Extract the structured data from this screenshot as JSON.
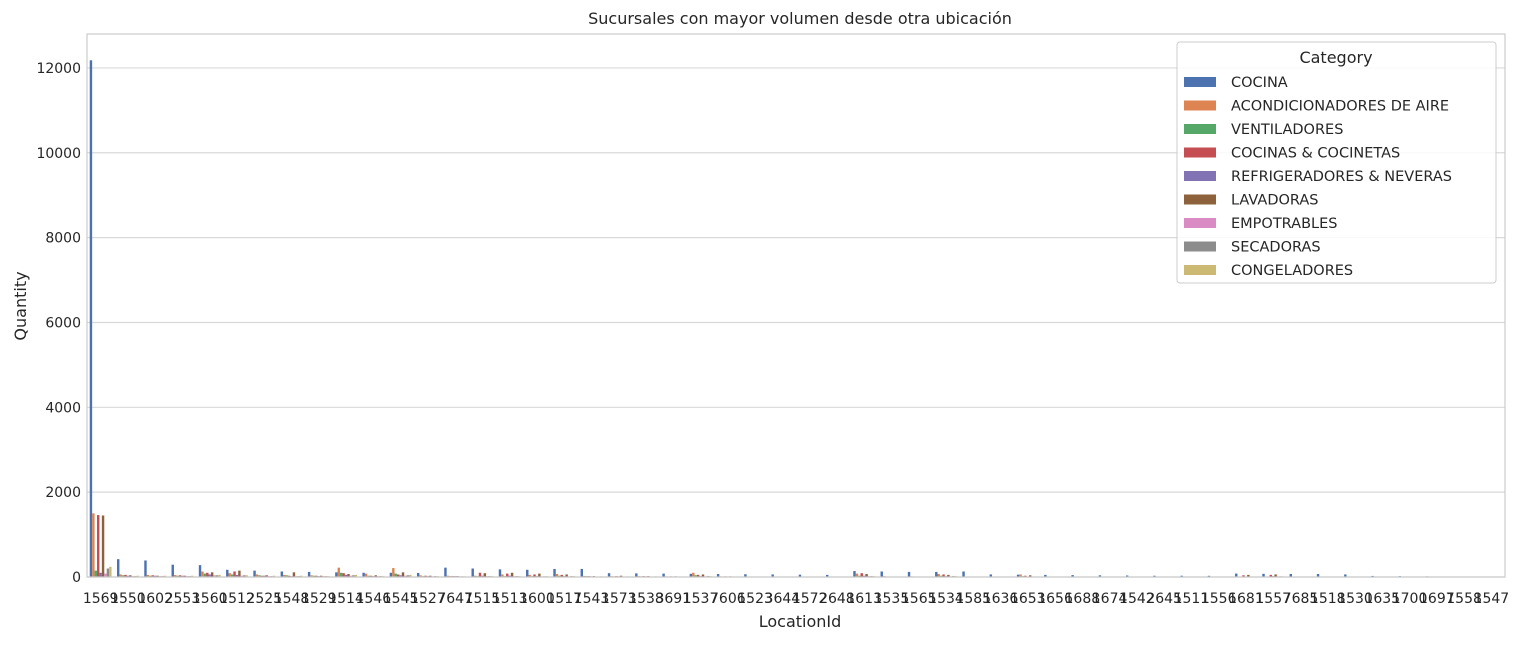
{
  "chart_data": {
    "type": "bar",
    "title": "Sucursales con mayor volumen desde otra ubicación",
    "xlabel": "LocationId",
    "ylabel": "Quantity",
    "ylim": [
      0,
      12800
    ],
    "yticks": [
      0,
      2000,
      4000,
      6000,
      8000,
      10000,
      12000
    ],
    "grid": true,
    "legend": {
      "title": "Category",
      "position": "top-right"
    },
    "categories": [
      "1569",
      "1550",
      "1602",
      "2553",
      "1560",
      "1512",
      "2525",
      "1548",
      "1529",
      "1514",
      "1546",
      "1545",
      "1527",
      "7647",
      "1515",
      "1513",
      "1600",
      "1517",
      "1543",
      "1573",
      "1538",
      "3691",
      "1537",
      "7606",
      "1523",
      "3644",
      "1572",
      "2648",
      "1613",
      "1535",
      "1565",
      "1534",
      "1585",
      "1636",
      "1653",
      "1656",
      "1688",
      "1674",
      "1542",
      "2645",
      "1511",
      "1556",
      "1681",
      "1557",
      "7685",
      "1518",
      "1530",
      "1635",
      "1700",
      "1697",
      "1558",
      "1547"
    ],
    "series": [
      {
        "name": "COCINA",
        "color": "#4c72b0",
        "values": [
          12180,
          420,
          390,
          290,
          280,
          170,
          150,
          130,
          120,
          110,
          100,
          100,
          95,
          220,
          200,
          180,
          170,
          190,
          190,
          90,
          85,
          80,
          75,
          70,
          65,
          60,
          55,
          50,
          140,
          130,
          120,
          120,
          130,
          60,
          55,
          50,
          45,
          40,
          35,
          30,
          30,
          28,
          80,
          75,
          70,
          70,
          60,
          25,
          20,
          15,
          10,
          5
        ]
      },
      {
        "name": "ACONDICIONADORES DE AIRE",
        "color": "#dd8452",
        "values": [
          1500,
          60,
          50,
          45,
          130,
          90,
          60,
          50,
          40,
          220,
          80,
          210,
          40,
          30,
          30,
          60,
          50,
          70,
          25,
          20,
          20,
          15,
          100,
          15,
          12,
          12,
          10,
          10,
          80,
          20,
          15,
          70,
          10,
          10,
          60,
          10,
          8,
          8,
          8,
          6,
          6,
          6,
          5,
          5,
          5,
          5,
          5,
          4,
          4,
          3,
          3,
          2
        ]
      },
      {
        "name": "VENTILADORES",
        "color": "#55a868",
        "values": [
          150,
          40,
          30,
          30,
          80,
          60,
          40,
          40,
          30,
          100,
          30,
          80,
          20,
          20,
          20,
          20,
          20,
          30,
          20,
          15,
          15,
          10,
          40,
          10,
          10,
          10,
          8,
          8,
          30,
          10,
          10,
          30,
          8,
          8,
          20,
          6,
          6,
          6,
          5,
          5,
          5,
          4,
          4,
          4,
          4,
          4,
          3,
          3,
          3,
          2,
          2,
          2
        ]
      },
      {
        "name": "COCINAS & COCINETAS",
        "color": "#c44e52",
        "values": [
          1460,
          50,
          40,
          40,
          100,
          130,
          30,
          30,
          30,
          90,
          30,
          60,
          30,
          20,
          100,
          80,
          60,
          50,
          20,
          20,
          20,
          15,
          50,
          15,
          10,
          10,
          10,
          8,
          90,
          10,
          10,
          60,
          10,
          8,
          30,
          8,
          6,
          6,
          6,
          5,
          5,
          5,
          40,
          50,
          5,
          4,
          4,
          3,
          3,
          3,
          2,
          2
        ]
      },
      {
        "name": "REFRIGERADORES & NEVERAS",
        "color": "#8172b3",
        "values": [
          100,
          30,
          30,
          30,
          60,
          50,
          30,
          20,
          20,
          50,
          20,
          40,
          20,
          20,
          30,
          30,
          20,
          20,
          15,
          15,
          15,
          10,
          20,
          10,
          10,
          8,
          8,
          8,
          30,
          8,
          8,
          20,
          6,
          6,
          10,
          5,
          5,
          5,
          5,
          4,
          4,
          4,
          10,
          20,
          4,
          3,
          3,
          3,
          2,
          2,
          2,
          2
        ]
      },
      {
        "name": "LAVADORAS",
        "color": "#8c613c",
        "values": [
          1450,
          40,
          30,
          30,
          110,
          150,
          40,
          110,
          30,
          70,
          40,
          110,
          30,
          20,
          90,
          100,
          80,
          60,
          20,
          30,
          20,
          15,
          60,
          15,
          10,
          10,
          10,
          8,
          70,
          10,
          10,
          50,
          10,
          8,
          40,
          8,
          6,
          6,
          6,
          5,
          5,
          5,
          50,
          60,
          5,
          4,
          4,
          3,
          3,
          3,
          2,
          2
        ]
      },
      {
        "name": "EMPOTRABLES",
        "color": "#da8bc3",
        "values": [
          80,
          20,
          20,
          20,
          40,
          30,
          20,
          20,
          20,
          30,
          20,
          30,
          15,
          15,
          20,
          20,
          15,
          15,
          10,
          10,
          10,
          10,
          15,
          10,
          8,
          8,
          8,
          6,
          20,
          6,
          6,
          15,
          5,
          5,
          10,
          5,
          5,
          4,
          4,
          4,
          4,
          3,
          10,
          15,
          3,
          3,
          3,
          2,
          2,
          2,
          2,
          1
        ]
      },
      {
        "name": "SECADORAS",
        "color": "#8c8c8c",
        "values": [
          200,
          20,
          20,
          20,
          40,
          40,
          20,
          20,
          20,
          40,
          20,
          40,
          20,
          15,
          20,
          20,
          15,
          20,
          10,
          10,
          10,
          10,
          20,
          10,
          8,
          8,
          8,
          6,
          20,
          6,
          6,
          20,
          5,
          5,
          10,
          5,
          5,
          4,
          4,
          4,
          4,
          3,
          10,
          15,
          3,
          3,
          3,
          2,
          2,
          2,
          2,
          1
        ]
      },
      {
        "name": "CONGELADORES",
        "color": "#ccb974",
        "values": [
          240,
          30,
          30,
          30,
          50,
          40,
          30,
          30,
          20,
          50,
          20,
          50,
          20,
          15,
          20,
          20,
          20,
          20,
          15,
          15,
          15,
          10,
          20,
          10,
          8,
          8,
          8,
          6,
          20,
          6,
          6,
          20,
          5,
          5,
          10,
          5,
          5,
          4,
          4,
          4,
          4,
          3,
          10,
          15,
          3,
          3,
          3,
          2,
          2,
          2,
          2,
          1
        ]
      }
    ]
  }
}
